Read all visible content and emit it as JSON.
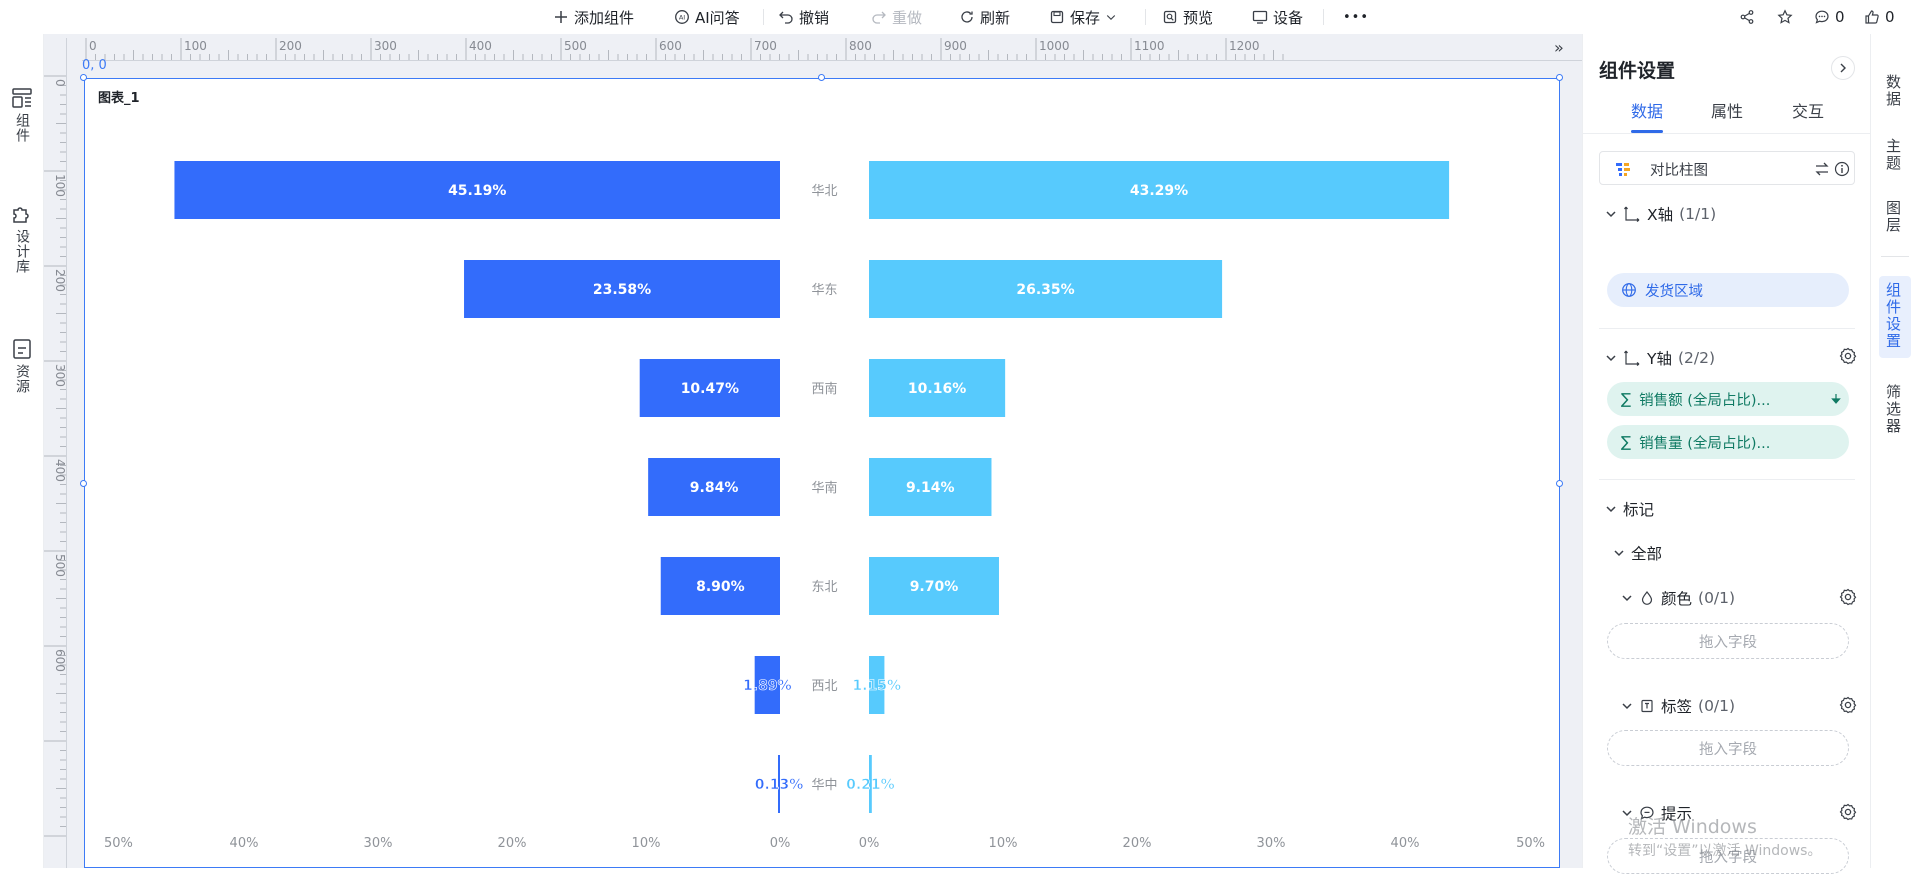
{
  "toolbar": {
    "add_component": "添加组件",
    "ai_qa": "AI问答",
    "undo": "撤销",
    "redo": "重做",
    "refresh": "刷新",
    "save": "保存",
    "preview": "预览",
    "device": "设备",
    "more": "•••",
    "comment_count": "0",
    "like_count": "0"
  },
  "left_rail": {
    "items": [
      {
        "label": "组件",
        "icon": "components-icon"
      },
      {
        "label": "设计库",
        "icon": "puzzle-icon"
      },
      {
        "label": "资源",
        "icon": "resource-icon"
      }
    ]
  },
  "rulers": {
    "top": [
      "0",
      "100",
      "200",
      "300",
      "400",
      "500",
      "600",
      "700",
      "800",
      "900",
      "1000",
      "1100",
      "1200"
    ],
    "left": [
      "0",
      "100",
      "200",
      "300",
      "400",
      "500",
      "600"
    ],
    "origin": "0, 0"
  },
  "chart_card": {
    "title": "图表_1"
  },
  "chart_data": {
    "type": "bar",
    "subtype": "butterfly",
    "categories": [
      "华北",
      "华东",
      "西南",
      "华南",
      "东北",
      "西北",
      "华中"
    ],
    "series": [
      {
        "values": [
          45.19,
          23.58,
          10.47,
          9.84,
          8.9,
          1.89,
          0.13
        ],
        "labels": [
          "45.19%",
          "23.58%",
          "10.47%",
          "9.84%",
          "8.90%",
          "1.89%",
          "0.13%"
        ],
        "color": "#336cfb"
      },
      {
        "values": [
          43.29,
          26.35,
          10.16,
          9.14,
          9.7,
          1.15,
          0.21
        ],
        "labels": [
          "43.29%",
          "26.35%",
          "10.16%",
          "9.14%",
          "9.70%",
          "1.15%",
          "0.21%"
        ],
        "color": "#57cafd"
      }
    ],
    "xlim": [
      0,
      50
    ],
    "x_ticks_left": [
      "50%",
      "40%",
      "30%",
      "20%",
      "10%",
      "0%"
    ],
    "x_ticks_right": [
      "0%",
      "10%",
      "20%",
      "30%",
      "40%",
      "50%"
    ],
    "grid": false
  },
  "settings": {
    "title": "组件设置",
    "tabs": [
      "数据",
      "属性",
      "交互"
    ],
    "active_tab": "数据",
    "chart_type": "对比柱图",
    "x_axis": {
      "label": "X轴",
      "count": "(1/1)",
      "field": "发货区域"
    },
    "y_axis": {
      "label": "Y轴",
      "count": "(2/2)",
      "fields": [
        "销售额 (全局占比)...",
        "销售量 (全局占比)..."
      ]
    },
    "marks": {
      "label": "标记",
      "all": "全部",
      "color": {
        "label": "颜色",
        "count": "(0/1)",
        "drop": "拖入字段"
      },
      "tag": {
        "label": "标签",
        "count": "(0/1)",
        "drop": "拖入字段"
      },
      "tooltip": {
        "label": "提示",
        "count": "",
        "drop": "拖入字段"
      }
    },
    "watermark_line1": "激活 Windows",
    "watermark_line2": "转到“设置”以激活 Windows。"
  },
  "right_rail": {
    "items": [
      "数据",
      "主题",
      "图层",
      "组件设置",
      "筛选器"
    ],
    "active": "组件设置"
  },
  "colors": {
    "accent": "#3d7bf6",
    "series_left": "#336cfb",
    "series_right": "#57cafd"
  }
}
